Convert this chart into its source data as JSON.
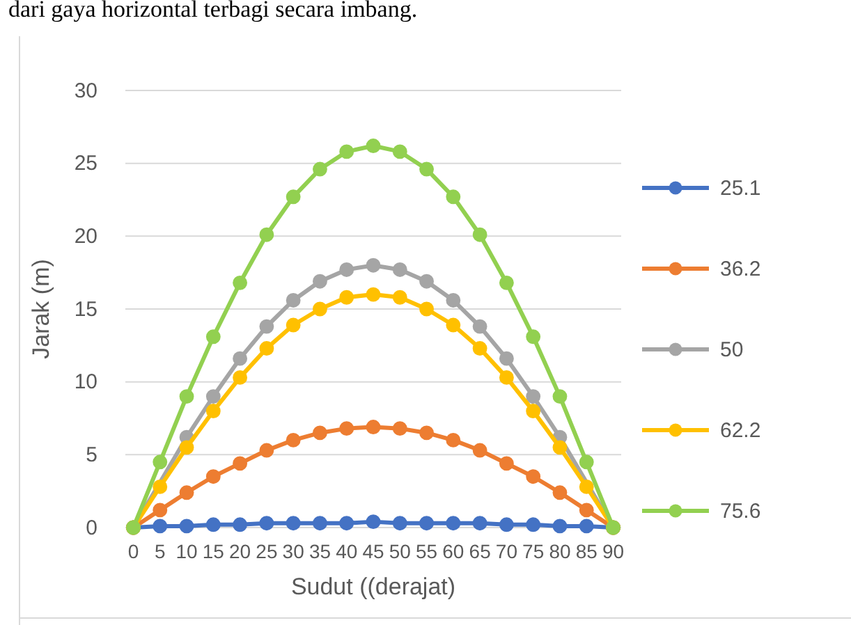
{
  "chart_data": {
    "type": "line",
    "xlabel": "Sudut ((derajat)",
    "ylabel": "Jarak (m)",
    "annotations": [
      "dari gaya horizontal terbagi secara imbang."
    ],
    "categories": [
      "0",
      "5",
      "10",
      "15",
      "20",
      "25",
      "30",
      "35",
      "40",
      "45",
      "50",
      "55",
      "60",
      "65",
      "70",
      "75",
      "80",
      "85",
      "90"
    ],
    "ylim": [
      0,
      30
    ],
    "yticks": [
      0,
      5,
      10,
      15,
      20,
      25,
      30
    ],
    "grid": "y",
    "legend": "right",
    "marker": "circle",
    "line_style": "solid",
    "series": [
      {
        "name": "25.1",
        "color": "#4472c4",
        "values": [
          0,
          0.1,
          0.1,
          0.2,
          0.2,
          0.3,
          0.3,
          0.3,
          0.3,
          0.4,
          0.3,
          0.3,
          0.3,
          0.3,
          0.2,
          0.2,
          0.1,
          0.1,
          0
        ]
      },
      {
        "name": "36.2",
        "color": "#ed7d31",
        "values": [
          0,
          1.2,
          2.4,
          3.5,
          4.4,
          5.3,
          6,
          6.5,
          6.8,
          6.9,
          6.8,
          6.5,
          6,
          5.3,
          4.4,
          3.5,
          2.4,
          1.2,
          0
        ]
      },
      {
        "name": "50",
        "color": "#a5a5a5",
        "values": [
          0,
          null,
          6.2,
          9,
          11.6,
          13.8,
          15.6,
          16.9,
          17.7,
          18,
          17.7,
          16.9,
          15.6,
          13.8,
          11.6,
          9,
          6.2,
          null,
          0
        ]
      },
      {
        "name": "62.2",
        "color": "#ffc000",
        "values": [
          0,
          2.8,
          5.5,
          8,
          10.3,
          12.3,
          13.9,
          15,
          15.8,
          16,
          15.8,
          15,
          13.9,
          12.3,
          10.3,
          8,
          5.5,
          2.8,
          0
        ]
      },
      {
        "name": "75.6",
        "color": "#92d050",
        "values": [
          0,
          4.5,
          9,
          13.1,
          16.8,
          20.1,
          22.7,
          24.6,
          25.8,
          26.2,
          25.8,
          24.6,
          22.7,
          20.1,
          16.8,
          13.1,
          9,
          4.5,
          0
        ]
      }
    ]
  }
}
